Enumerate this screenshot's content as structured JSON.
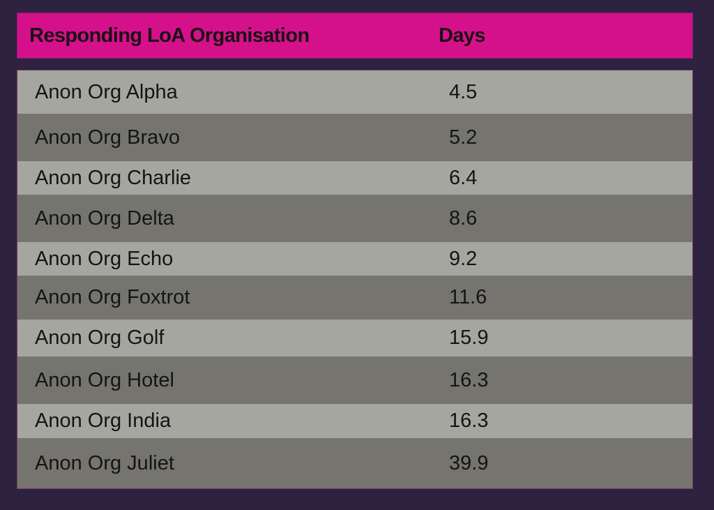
{
  "chart_data": {
    "type": "table",
    "columns": [
      "Responding LoA Organisation",
      "Days"
    ],
    "rows": [
      {
        "organisation": "Anon Org Alpha",
        "days": "4.5"
      },
      {
        "organisation": "Anon Org Bravo",
        "days": "5.2"
      },
      {
        "organisation": "Anon Org Charlie",
        "days": "6.4"
      },
      {
        "organisation": "Anon Org Delta",
        "days": "8.6"
      },
      {
        "organisation": "Anon Org Echo",
        "days": "9.2"
      },
      {
        "organisation": "Anon Org Foxtrot",
        "days": "11.6"
      },
      {
        "organisation": "Anon Org Golf",
        "days": "15.9"
      },
      {
        "organisation": "Anon Org Hotel",
        "days": "16.3"
      },
      {
        "organisation": "Anon Org India",
        "days": "16.3"
      },
      {
        "organisation": "Anon Org Juliet",
        "days": "39.9"
      }
    ]
  },
  "colors": {
    "background": "#2d2240",
    "header": "#d4118b",
    "row_light": "#a6a6a0",
    "row_dark": "#75746f"
  }
}
